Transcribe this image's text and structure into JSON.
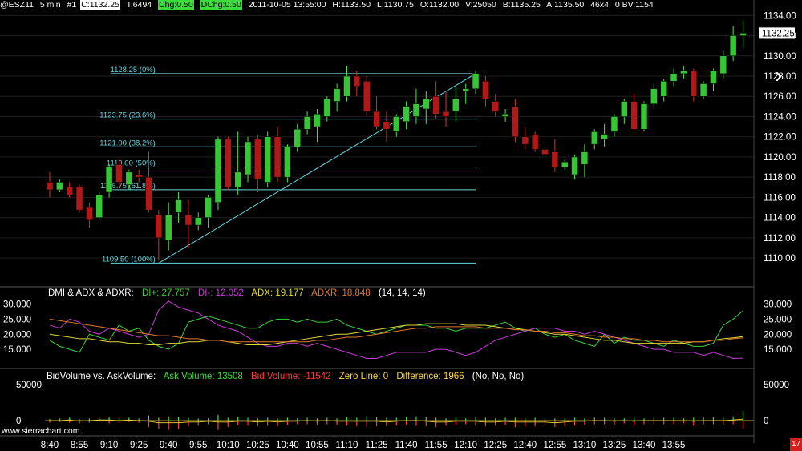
{
  "header": {
    "symbol": "@ESZ11",
    "interval": "5 min",
    "bar_no": "#1",
    "close": "C:1132.25",
    "ticks": "T:6494",
    "chg": "Chg:0.50",
    "dchg": "DChg:0.50",
    "datetime": "2011-10-05 13:55:00",
    "high": "H:1133.50",
    "low": "L:1130.75",
    "open": "O:1132.00",
    "volume": "V:25050",
    "bid": "B:1135.25",
    "ask": "A:1135.50",
    "size": "46x4",
    "bv": "0 BV:1154"
  },
  "watermark": "www.sierrachart.com",
  "corner_badge": "17",
  "nav_arrow": "›",
  "colors": {
    "up": "#35c535",
    "down": "#b11818",
    "fib": "#66d6e0",
    "di_plus": "#3bd13b",
    "di_minus": "#c83bd8",
    "adx": "#e0d83a",
    "adxr": "#e07a2a",
    "ask_vol": "#3bdc3b",
    "bid_vol": "#ff3b3b"
  },
  "dmi_panel": {
    "title": "DMI & ADX & ADXR:",
    "di_plus": "DI+: 27.757",
    "di_minus": "DI-: 12.052",
    "adx": "ADX: 19.177",
    "adxr": "ADXR: 18.848",
    "params": "(14, 14, 14)"
  },
  "volume_panel": {
    "title": "BidVolume vs. AskVolume:",
    "ask": "Ask Volume: 13508",
    "bid": "Bid Volume: -11542",
    "zero": "Zero Line: 0",
    "diff": "Difference: 1966",
    "params": "(No, No, No)"
  },
  "chart_data": [
    {
      "type": "candlestick",
      "title": "@ESZ11 5 min",
      "ylim": [
        1108.5,
        1134.5
      ],
      "y_ticks": [
        "1134.00",
        "1132.00",
        "1130.00",
        "1128.00",
        "1126.00",
        "1124.00",
        "1122.00",
        "1120.00",
        "1118.00",
        "1116.00",
        "1114.00",
        "1112.00",
        "1110.00"
      ],
      "last_price_label": "1132.25",
      "x_labels": [
        "8:40",
        "8:55",
        "9:10",
        "9:25",
        "9:40",
        "9:55",
        "10:10",
        "10:25",
        "10:40",
        "10:55",
        "11:10",
        "11:25",
        "11:40",
        "11:55",
        "12:10",
        "12:25",
        "12:40",
        "12:55",
        "13:10",
        "13:25",
        "13:40",
        "13:55"
      ],
      "bars_ohlc": [
        [
          1117.5,
          1118.5,
          1116.0,
          1116.75
        ],
        [
          1116.75,
          1117.75,
          1116.5,
          1117.5
        ],
        [
          1117.0,
          1117.5,
          1116.0,
          1116.25
        ],
        [
          1117.0,
          1117.25,
          1114.5,
          1114.75
        ],
        [
          1115.0,
          1115.5,
          1113.0,
          1113.75
        ],
        [
          1114.0,
          1116.5,
          1113.75,
          1116.25
        ],
        [
          1116.5,
          1119.25,
          1116.0,
          1119.0
        ],
        [
          1119.25,
          1119.75,
          1117.0,
          1117.5
        ],
        [
          1117.25,
          1118.75,
          1116.75,
          1118.5
        ],
        [
          1118.25,
          1118.75,
          1117.5,
          1118.0
        ],
        [
          1118.0,
          1120.5,
          1114.5,
          1114.75
        ],
        [
          1114.25,
          1114.75,
          1109.75,
          1112.0
        ],
        [
          1111.75,
          1115.5,
          1110.75,
          1114.25
        ],
        [
          1114.5,
          1116.5,
          1113.5,
          1115.75
        ],
        [
          1114.25,
          1115.75,
          1111.0,
          1113.25
        ],
        [
          1113.25,
          1114.5,
          1112.75,
          1114.0
        ],
        [
          1114.0,
          1116.25,
          1113.0,
          1116.0
        ],
        [
          1115.5,
          1122.0,
          1114.75,
          1121.75
        ],
        [
          1121.75,
          1122.0,
          1116.75,
          1117.0
        ],
        [
          1117.0,
          1122.5,
          1116.25,
          1118.5
        ],
        [
          1118.25,
          1122.0,
          1117.5,
          1121.5
        ],
        [
          1121.75,
          1122.25,
          1116.5,
          1117.75
        ],
        [
          1117.5,
          1122.5,
          1117.0,
          1122.0
        ],
        [
          1122.0,
          1123.0,
          1117.5,
          1118.0
        ],
        [
          1118.0,
          1121.25,
          1117.5,
          1121.0
        ],
        [
          1121.0,
          1123.25,
          1120.5,
          1122.75
        ],
        [
          1122.75,
          1124.5,
          1122.25,
          1124.0
        ],
        [
          1123.0,
          1124.75,
          1121.5,
          1124.25
        ],
        [
          1124.0,
          1126.0,
          1123.5,
          1125.75
        ],
        [
          1125.5,
          1127.25,
          1124.5,
          1126.75
        ],
        [
          1126.0,
          1129.0,
          1125.5,
          1128.0
        ],
        [
          1128.0,
          1128.5,
          1126.0,
          1127.0
        ],
        [
          1127.5,
          1128.0,
          1124.0,
          1124.5
        ],
        [
          1124.5,
          1126.0,
          1122.75,
          1123.0
        ],
        [
          1123.5,
          1124.5,
          1121.5,
          1122.75
        ],
        [
          1122.5,
          1124.25,
          1122.0,
          1124.0
        ],
        [
          1123.5,
          1125.5,
          1122.75,
          1125.0
        ],
        [
          1124.0,
          1126.75,
          1123.25,
          1125.25
        ],
        [
          1124.75,
          1126.5,
          1123.25,
          1125.75
        ],
        [
          1126.0,
          1127.5,
          1123.75,
          1124.25
        ],
        [
          1124.5,
          1126.5,
          1123.0,
          1124.0
        ],
        [
          1124.5,
          1127.0,
          1123.5,
          1125.75
        ],
        [
          1126.5,
          1127.25,
          1125.25,
          1126.75
        ],
        [
          1126.75,
          1128.5,
          1126.25,
          1128.25
        ],
        [
          1127.5,
          1128.0,
          1125.0,
          1125.75
        ],
        [
          1125.5,
          1126.25,
          1124.0,
          1124.5
        ],
        [
          1124.0,
          1124.75,
          1123.5,
          1124.25
        ],
        [
          1125.0,
          1125.75,
          1121.5,
          1122.0
        ],
        [
          1122.0,
          1123.0,
          1120.75,
          1121.25
        ],
        [
          1122.25,
          1122.5,
          1120.5,
          1120.75
        ],
        [
          1120.75,
          1121.5,
          1120.0,
          1120.25
        ],
        [
          1120.5,
          1121.75,
          1118.5,
          1119.0
        ],
        [
          1119.0,
          1119.75,
          1118.75,
          1119.5
        ],
        [
          1118.25,
          1120.25,
          1117.75,
          1120.0
        ],
        [
          1119.25,
          1121.25,
          1118.0,
          1120.5
        ],
        [
          1121.25,
          1122.75,
          1120.75,
          1122.5
        ],
        [
          1121.75,
          1123.25,
          1121.0,
          1122.25
        ],
        [
          1122.5,
          1124.25,
          1122.0,
          1124.0
        ],
        [
          1124.0,
          1125.75,
          1123.25,
          1125.5
        ],
        [
          1125.5,
          1126.25,
          1122.5,
          1122.75
        ],
        [
          1122.75,
          1125.5,
          1122.5,
          1125.25
        ],
        [
          1125.25,
          1127.25,
          1125.0,
          1126.75
        ],
        [
          1126.0,
          1127.75,
          1125.5,
          1127.5
        ],
        [
          1127.5,
          1128.75,
          1127.0,
          1128.25
        ],
        [
          1128.25,
          1129.0,
          1127.75,
          1128.5
        ],
        [
          1128.5,
          1128.75,
          1125.5,
          1126.0
        ],
        [
          1126.0,
          1127.5,
          1125.75,
          1127.25
        ],
        [
          1127.25,
          1128.75,
          1126.5,
          1128.5
        ],
        [
          1128.25,
          1130.5,
          1127.75,
          1130.0
        ],
        [
          1130.0,
          1133.0,
          1129.5,
          1132.0
        ],
        [
          1132.0,
          1133.5,
          1130.75,
          1132.25
        ]
      ],
      "fib_levels": [
        {
          "price": 1128.25,
          "label": "1128.25 (0%)"
        },
        {
          "price": 1123.75,
          "label": "1123.75 (23.6%)"
        },
        {
          "price": 1121.0,
          "label": "1121.00 (38.2%)"
        },
        {
          "price": 1119.0,
          "label": "1119.00 (50%)"
        },
        {
          "price": 1116.75,
          "label": "1116.75 (61.8%)"
        },
        {
          "price": 1109.5,
          "label": "1109.50 (100%)"
        }
      ],
      "fib_start_bar": 11,
      "fib_end_bar": 43
    },
    {
      "type": "line",
      "title": "DMI & ADX & ADXR",
      "ylim": [
        10,
        32
      ],
      "y_ticks": [
        "30.000",
        "25.000",
        "20.000",
        "15.000"
      ],
      "series": [
        {
          "name": "DI+",
          "values": [
            18,
            16,
            15,
            14,
            20,
            19,
            18,
            23,
            21,
            22,
            18,
            16,
            15,
            17,
            24,
            25,
            26,
            25,
            24,
            23,
            22,
            22,
            24,
            25,
            25,
            24,
            25,
            24,
            24,
            25,
            23,
            22,
            21,
            20,
            21,
            22,
            23,
            23,
            23,
            22,
            22,
            21,
            22,
            22,
            22,
            23,
            24,
            22,
            21,
            22,
            20,
            19,
            20,
            18,
            17,
            16,
            20,
            17,
            19,
            18,
            18,
            17,
            16,
            18,
            17,
            16,
            16,
            17,
            23,
            25,
            27.8
          ]
        },
        {
          "name": "DI-",
          "values": [
            23,
            22,
            25,
            24,
            21,
            20,
            22,
            21,
            20,
            19,
            20,
            28,
            31,
            29,
            28,
            27,
            25,
            23,
            22,
            21,
            19,
            17,
            16,
            16,
            17,
            17,
            16,
            17,
            16,
            15,
            14,
            13,
            12,
            12,
            13,
            14,
            14,
            14,
            14,
            15,
            15,
            14,
            13,
            14,
            16,
            18,
            19,
            20,
            21,
            22,
            22,
            22,
            21,
            21,
            20,
            21,
            20,
            19,
            18,
            17,
            16,
            15,
            15,
            14,
            14,
            14,
            13,
            14,
            13,
            12,
            12.1
          ]
        },
        {
          "name": "ADX",
          "values": [
            20,
            19.5,
            19,
            18.5,
            18.5,
            18,
            17.5,
            17.5,
            17,
            17,
            16.5,
            16.5,
            17,
            17,
            17.5,
            17.5,
            18,
            18,
            17.5,
            17,
            16.5,
            16.5,
            16.5,
            17,
            17.5,
            18,
            18.5,
            19,
            19.5,
            20,
            20,
            20.5,
            21,
            21.5,
            22,
            22.5,
            23,
            23,
            23.5,
            23.5,
            23.5,
            23.5,
            23,
            23,
            23,
            22.5,
            22,
            22,
            21.5,
            21,
            20.5,
            20,
            20,
            19.5,
            19,
            18.5,
            18,
            18,
            17.5,
            17,
            17,
            17,
            17,
            17,
            17,
            17.5,
            17.5,
            18,
            18.5,
            18.8,
            19.2
          ]
        },
        {
          "name": "ADXR",
          "values": [
            25,
            24.5,
            24,
            23.5,
            23,
            22.5,
            22,
            21.5,
            21,
            20.5,
            20,
            19.5,
            19.5,
            19,
            18.5,
            18.5,
            18,
            18,
            17.5,
            17.5,
            17.5,
            17.5,
            17.5,
            17.5,
            17.5,
            17.5,
            17.5,
            18,
            18,
            18.5,
            19,
            19,
            19.5,
            20,
            20.5,
            21,
            21.5,
            22,
            22,
            22.5,
            22.5,
            22.5,
            22.5,
            22.5,
            22,
            22,
            22,
            21.5,
            21.5,
            21,
            21,
            20.5,
            20.5,
            20,
            19.5,
            19.5,
            19,
            19,
            18.5,
            18.5,
            18,
            18,
            17.5,
            17.5,
            17.5,
            17.5,
            17.5,
            18,
            18,
            18.5,
            18.8
          ]
        }
      ]
    },
    {
      "type": "bar",
      "title": "BidVolume vs. AskVolume",
      "ylim": [
        -30000,
        70000
      ],
      "y_ticks": [
        "50000",
        "0"
      ],
      "series": [
        {
          "name": "Ask Volume",
          "values": [
            2,
            3,
            4,
            2,
            3,
            4,
            5,
            3,
            4,
            3,
            7,
            4,
            6,
            5,
            4,
            3,
            3,
            8,
            4,
            5,
            4,
            3,
            4,
            3,
            4,
            3,
            4,
            3,
            4,
            3,
            5,
            4,
            6,
            5,
            4,
            4,
            5,
            6,
            5,
            4,
            3,
            4,
            3,
            5,
            4,
            3,
            4,
            4,
            3,
            4,
            3,
            3,
            3,
            4,
            3,
            4,
            4,
            3,
            3,
            4,
            3,
            4,
            4,
            4,
            3,
            4,
            5,
            5,
            4,
            6,
            13
          ]
        },
        {
          "name": "Bid Volume",
          "values": [
            -3,
            -2,
            -3,
            -4,
            -3,
            -2,
            -4,
            -3,
            -2,
            -3,
            -9,
            -11,
            -13,
            -12,
            -8,
            -7,
            -5,
            -13,
            -9,
            -6,
            -7,
            -8,
            -7,
            -8,
            -6,
            -5,
            -5,
            -6,
            -5,
            -6,
            -7,
            -8,
            -9,
            -8,
            -8,
            -7,
            -6,
            -7,
            -8,
            -9,
            -7,
            -6,
            -5,
            -7,
            -8,
            -7,
            -6,
            -9,
            -8,
            -8,
            -7,
            -9,
            -8,
            -7,
            -6,
            -5,
            -5,
            -6,
            -4,
            -7,
            -5,
            -5,
            -5,
            -5,
            -4,
            -7,
            -5,
            -5,
            -6,
            -5,
            -11.5
          ]
        },
        {
          "name": "Difference",
          "values": [
            0,
            0,
            1,
            -1,
            0,
            1,
            1,
            0,
            1,
            0,
            -1,
            -3,
            -3,
            -3,
            -2,
            -2,
            -1,
            -2,
            -2,
            -1,
            -1,
            -2,
            -1,
            -2,
            -1,
            -1,
            0,
            -1,
            0,
            -1,
            -1,
            -1,
            -1,
            -1,
            -2,
            -1,
            0,
            0,
            -1,
            -2,
            -2,
            -1,
            -1,
            -1,
            -2,
            -2,
            -1,
            -2,
            -2,
            -2,
            -2,
            -3,
            -2,
            -1,
            -1,
            0,
            0,
            -1,
            0,
            -1,
            0,
            0,
            0,
            0,
            0,
            -1,
            0,
            0,
            0,
            1,
            2
          ]
        }
      ]
    }
  ]
}
